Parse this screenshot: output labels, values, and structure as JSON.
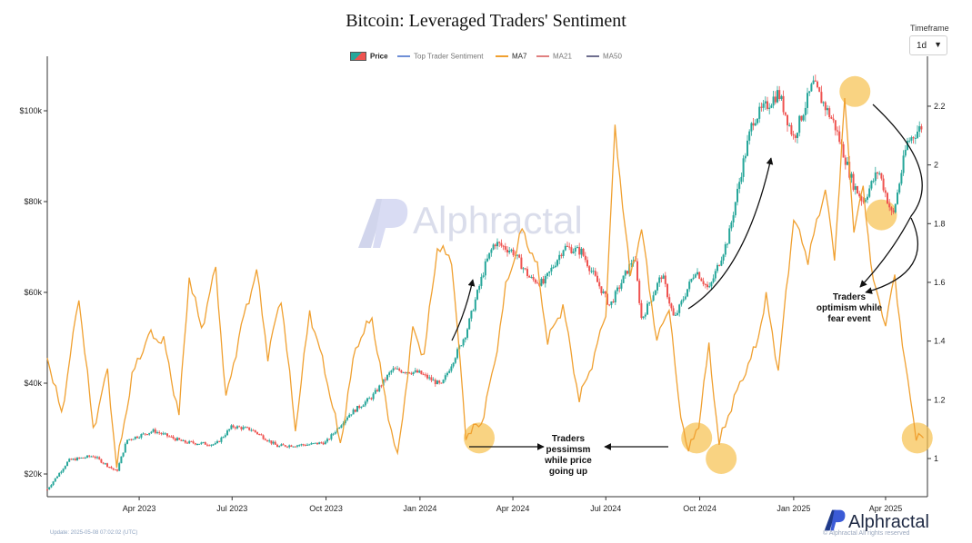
{
  "header": {
    "title": "Bitcoin: Leveraged Traders' Sentiment",
    "timeframe_label": "Timeframe",
    "timeframe_value": "1d"
  },
  "legend": {
    "items": [
      "Price",
      "Top Trader Sentiment",
      "MA7",
      "MA21",
      "MA50"
    ],
    "colors": [
      "#26a69a",
      "#6f8fd6",
      "#f0a030",
      "#e08080",
      "#6f6f8f"
    ]
  },
  "footer": {
    "update": "Update: 2025-05-08 07:02:02 (UTC)",
    "brand": "Alphractal",
    "copyright": "© Alphractal All rights reserved"
  },
  "watermark": {
    "text": "Alphractal"
  },
  "annotations": {
    "pessimism": "Traders\npessimsm\nwhile price\ngoing up",
    "optimism": "Traders\noptimism while\nfear event"
  },
  "chart_data": {
    "type": "line",
    "x_ticks": [
      "Apr 2023",
      "Jul 2023",
      "Oct 2023",
      "Jan 2024",
      "Apr 2024",
      "Jul 2024",
      "Oct 2024",
      "Jan 2025",
      "Apr 2025"
    ],
    "y_left_ticks": [
      "$20k",
      "$40k",
      "$60k",
      "$80k",
      "$100k"
    ],
    "y_right_ticks": [
      "1",
      "1.2",
      "1.4",
      "1.6",
      "1.8",
      "2",
      "2.2"
    ],
    "ylim_left": [
      15000,
      112000
    ],
    "ylim_right": [
      0.87,
      2.37
    ],
    "grid": false,
    "legend_position": "top-center",
    "series": [
      {
        "name": "Price",
        "type": "candlestick",
        "axis": "left",
        "up_color": "#26a69a",
        "down_color": "#ef5350",
        "x": [
          "2023-01-01",
          "2023-01-22",
          "2023-02-15",
          "2023-03-10",
          "2023-03-20",
          "2023-04-15",
          "2023-05-15",
          "2023-06-15",
          "2023-07-01",
          "2023-07-20",
          "2023-08-15",
          "2023-08-18",
          "2023-09-15",
          "2023-10-01",
          "2023-10-23",
          "2023-11-15",
          "2023-12-05",
          "2023-12-31",
          "2024-01-22",
          "2024-02-15",
          "2024-03-05",
          "2024-03-14",
          "2024-04-01",
          "2024-04-18",
          "2024-05-01",
          "2024-05-21",
          "2024-06-07",
          "2024-07-05",
          "2024-07-29",
          "2024-08-05",
          "2024-08-25",
          "2024-09-06",
          "2024-09-27",
          "2024-10-10",
          "2024-10-29",
          "2024-11-12",
          "2024-11-22",
          "2024-12-05",
          "2024-12-17",
          "2025-01-01",
          "2025-01-20",
          "2025-02-10",
          "2025-02-28",
          "2025-03-10",
          "2025-03-25",
          "2025-04-08",
          "2025-04-22",
          "2025-05-08"
        ],
        "values": [
          16600,
          23000,
          24000,
          20500,
          27500,
          29500,
          27000,
          26500,
          30500,
          29800,
          26000,
          26200,
          26500,
          27000,
          33000,
          37000,
          43000,
          42300,
          39500,
          51000,
          66000,
          71000,
          69000,
          63000,
          62000,
          70000,
          69000,
          57000,
          68000,
          54000,
          64000,
          54000,
          65000,
          60500,
          72000,
          88000,
          98000,
          101000,
          104000,
          94000,
          106000,
          97000,
          84000,
          80000,
          87000,
          76500,
          93000,
          97000
        ]
      },
      {
        "name": "MA7",
        "type": "line",
        "axis": "right",
        "color": "#f0a030",
        "x": [
          "2023-01-01",
          "2023-01-15",
          "2023-02-01",
          "2023-02-15",
          "2023-03-01",
          "2023-03-10",
          "2023-03-25",
          "2023-04-10",
          "2023-04-25",
          "2023-05-10",
          "2023-05-20",
          "2023-06-01",
          "2023-06-15",
          "2023-06-25",
          "2023-07-10",
          "2023-07-25",
          "2023-08-05",
          "2023-08-18",
          "2023-09-01",
          "2023-09-15",
          "2023-09-30",
          "2023-10-15",
          "2023-10-30",
          "2023-11-15",
          "2023-11-28",
          "2023-12-10",
          "2023-12-25",
          "2024-01-05",
          "2024-01-18",
          "2024-02-01",
          "2024-02-15",
          "2024-03-01",
          "2024-03-14",
          "2024-03-25",
          "2024-04-10",
          "2024-04-25",
          "2024-05-05",
          "2024-05-20",
          "2024-06-05",
          "2024-06-20",
          "2024-07-01",
          "2024-07-10",
          "2024-07-25",
          "2024-08-05",
          "2024-08-20",
          "2024-09-01",
          "2024-09-10",
          "2024-09-20",
          "2024-09-30",
          "2024-10-10",
          "2024-10-20",
          "2024-11-01",
          "2024-11-15",
          "2024-11-25",
          "2024-12-05",
          "2024-12-17",
          "2025-01-01",
          "2025-01-15",
          "2025-02-01",
          "2025-02-10",
          "2025-02-20",
          "2025-03-01",
          "2025-03-10",
          "2025-03-20",
          "2025-04-01",
          "2025-04-10",
          "2025-04-20",
          "2025-05-01",
          "2025-05-08"
        ],
        "values": [
          1.35,
          1.15,
          1.55,
          1.1,
          1.3,
          0.97,
          1.28,
          1.42,
          1.4,
          1.15,
          1.62,
          1.44,
          1.65,
          1.2,
          1.45,
          1.64,
          1.35,
          1.55,
          1.1,
          1.5,
          1.3,
          1.05,
          1.38,
          1.48,
          1.2,
          1.0,
          1.44,
          1.35,
          1.72,
          1.68,
          1.08,
          1.12,
          1.32,
          1.58,
          1.78,
          1.65,
          1.4,
          1.52,
          1.2,
          1.35,
          1.5,
          2.12,
          1.62,
          1.78,
          1.4,
          1.52,
          1.2,
          1.02,
          1.12,
          1.38,
          1.05,
          1.18,
          1.3,
          1.38,
          1.55,
          1.3,
          1.82,
          1.68,
          1.92,
          1.68,
          2.22,
          1.78,
          1.92,
          1.6,
          1.46,
          1.62,
          1.32,
          1.08,
          1.07
        ]
      }
    ]
  }
}
